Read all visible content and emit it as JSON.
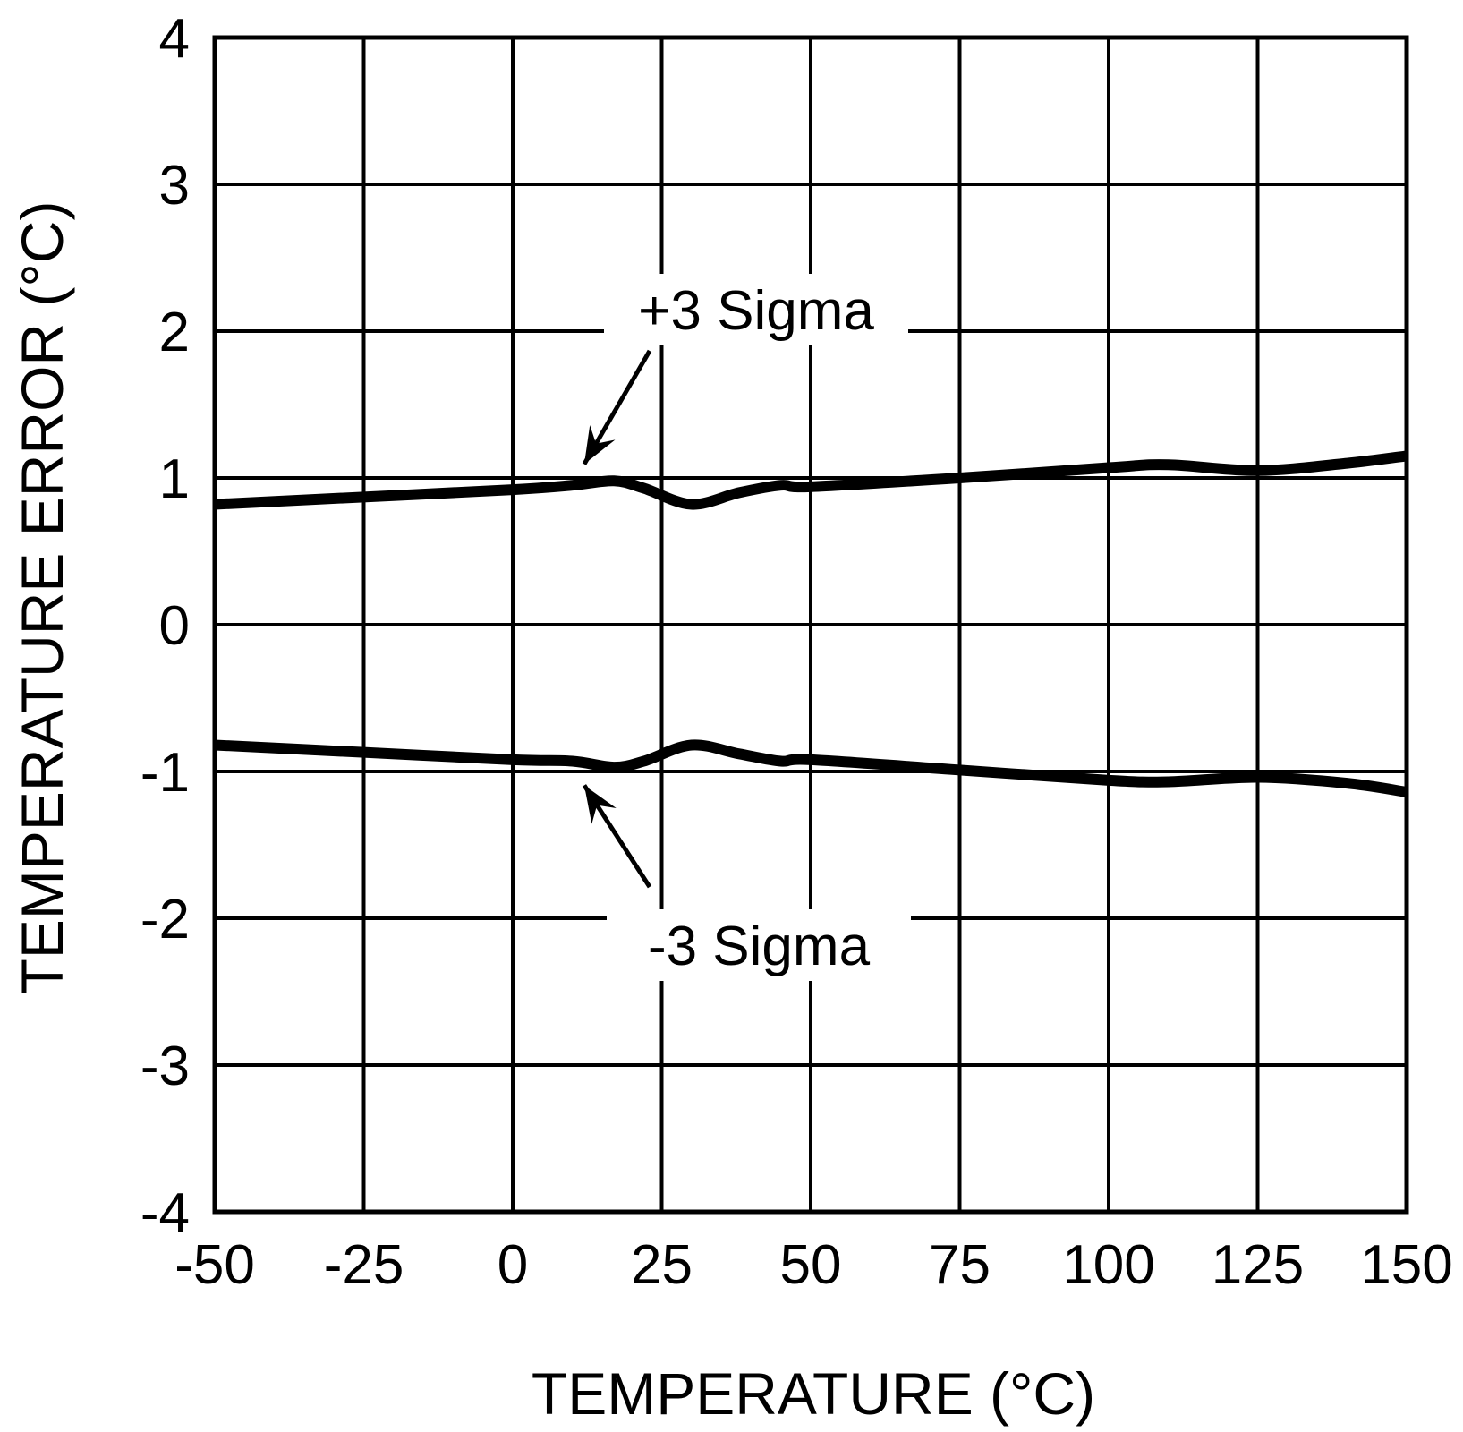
{
  "chart_data": {
    "type": "line",
    "title": "",
    "xlabel": "TEMPERATURE (°C)",
    "ylabel": "TEMPERATURE ERROR (°C)",
    "xlim": [
      -50,
      150
    ],
    "ylim": [
      -4,
      4
    ],
    "xticks": [
      -50,
      -25,
      0,
      25,
      50,
      75,
      100,
      125,
      150
    ],
    "yticks": [
      -4,
      -3,
      -2,
      -1,
      0,
      1,
      2,
      3,
      4
    ],
    "grid": true,
    "line_color": "#000000",
    "series": [
      {
        "name": "+3 Sigma",
        "x": [
          -50,
          -25,
          0,
          10,
          17,
          22,
          30,
          38,
          45,
          50,
          75,
          100,
          110,
          125,
          140,
          150
        ],
        "y": [
          0.82,
          0.87,
          0.92,
          0.95,
          0.98,
          0.93,
          0.82,
          0.9,
          0.95,
          0.94,
          1.0,
          1.07,
          1.09,
          1.05,
          1.1,
          1.15
        ]
      },
      {
        "name": "-3 Sigma",
        "x": [
          -50,
          -25,
          0,
          10,
          17,
          22,
          30,
          38,
          45,
          50,
          75,
          100,
          110,
          125,
          140,
          150
        ],
        "y": [
          -0.82,
          -0.87,
          -0.92,
          -0.93,
          -0.97,
          -0.93,
          -0.82,
          -0.88,
          -0.93,
          -0.92,
          -0.99,
          -1.06,
          -1.07,
          -1.04,
          -1.08,
          -1.14
        ]
      }
    ],
    "annotations": [
      {
        "text": "+3 Sigma",
        "points_to_x": 12,
        "points_to_y": 0.96
      },
      {
        "text": "-3 Sigma",
        "points_to_x": 12,
        "points_to_y": -0.96
      }
    ]
  }
}
